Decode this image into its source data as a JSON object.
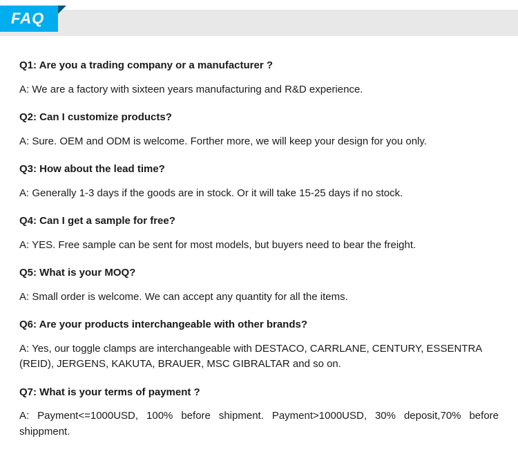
{
  "header": {
    "tab_label": "FAQ"
  },
  "faqs": [
    {
      "question": "Q1:  Are you a trading company or a manufacturer ?",
      "answer": "A: We are a factory with sixteen years manufacturing and R&D experience."
    },
    {
      "question": "Q2: Can I customize products?",
      "answer": "A: Sure. OEM and ODM is welcome. Forther more, we will keep your design for you only."
    },
    {
      "question": "Q3: How about the lead time?",
      "answer": "A: Generally 1-3 days if the goods are in stock. Or it will take 15-25 days if no stock."
    },
    {
      "question": "Q4: Can I get a sample for free?",
      "answer": "A: YES. Free sample can be sent for most models, but buyers need to bear the freight."
    },
    {
      "question": "Q5: What is your MOQ?",
      "answer": "A: Small order is welcome. We can accept any quantity for all the items."
    },
    {
      "question": "Q6: Are your products interchangeable with other brands?",
      "answer": "A: Yes, our toggle clamps are interchangeable with DESTACO,  CARRLANE, CENTURY, ESSENTRA (REID), JERGENS, KAKUTA, BRAUER,  MSC GIBRALTAR and so on."
    },
    {
      "question": "Q7: What is your terms of payment ?",
      "answer": "A: Payment<=1000USD, 100% before shipment. Payment>1000USD, 30% deposit,70% before shippment."
    }
  ],
  "colors": {
    "tab_background": "#00aeef",
    "tab_fold": "#005577",
    "header_bar": "#e8e8e8",
    "text": "#1a1a1a",
    "tab_text": "#ffffff",
    "background": "#ffffff"
  },
  "typography": {
    "body_fontsize": 15,
    "tab_fontsize": 22,
    "font_family": "Arial"
  }
}
